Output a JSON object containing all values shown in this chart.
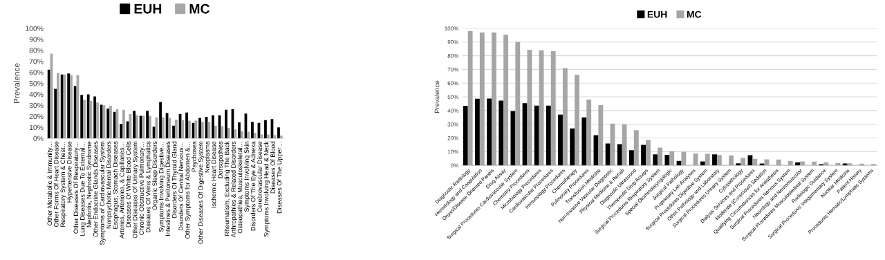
{
  "chart_data": [
    {
      "type": "bar",
      "ylabel": "Prevalence",
      "legend": "top",
      "grid": false,
      "categories": [
        "Other Metabolic & Immunity…",
        "Other Forms Of Heart Disease",
        "Respiratory System & Chest…",
        "Hypertensive Disease",
        "Other Diseases Of Respiratory…",
        "Lung Diseases Due To External…",
        "Nephritis, Nephrotic Syndrome",
        "Other Endocrine Glands Diseases",
        "Symptoms of Cardiovascular System",
        "Nonpsychotic Mental Disorders",
        "Esophagus, Stomach Diseases",
        "Arteries, Arterioles, & Capillaries…",
        "Diseases Of White Blood Cells",
        "Other Diseases Of Urinary System",
        "Chronic Obstructive Pulmonary…",
        "Diseases Of Veins & Lymphatics",
        "Organic Sleep Disorders",
        "Symptoms Involving Digestive…",
        "Intestines & Peritoneum Diseases",
        "Disorders Of Thyroid Gland",
        "Disorders Of Central Nervous…",
        "Other Symptoms for Abdomen &…",
        "Psychoses",
        "Other Diseases Of Digestive System",
        "Neoplasms",
        "Ischemic Heart Disease",
        "Dorsopathies",
        "Rheumatism, Excluding The Back",
        "Arthropathies & Related Disorders",
        "Osteopathies, Musculoskeletal…",
        "Symptoms Involving Skin",
        "Disorders Of The Eye & Adnexa",
        "Cerebrovascular Disease",
        "Symptoms Involving Head & Neck",
        "Diseases Of Blood",
        "Diseases Of The Upper…"
      ],
      "series": [
        {
          "name": "EUH",
          "color": "#000000",
          "values": [
            62.5,
            45,
            58,
            59,
            47.5,
            39.5,
            40,
            38,
            30.5,
            27,
            24,
            13,
            15.5,
            25,
            20.5,
            25,
            10.5,
            33,
            23,
            11.5,
            22,
            23.5,
            14,
            18.5,
            19.5,
            21,
            21,
            26,
            26.5,
            14.5,
            22.5,
            15,
            14,
            16.5,
            17.5,
            10
          ]
        },
        {
          "name": "MC",
          "color": "#a6a6a6",
          "values": [
            77,
            59.5,
            58,
            57.5,
            57.5,
            35,
            34,
            32.5,
            30,
            29.5,
            26.5,
            26,
            22,
            21,
            20.5,
            20.5,
            19,
            19,
            18.5,
            17,
            16.5,
            16,
            16,
            15,
            15,
            11.5,
            11,
            9.5,
            8,
            6.5,
            6,
            5,
            3.5,
            3.5,
            3,
            2.5
          ]
        }
      ],
      "ylim": [
        0,
        100
      ],
      "yticks": [
        {
          "value": 0,
          "label": "0%"
        },
        {
          "value": 10,
          "label": "10%"
        },
        {
          "value": 20,
          "label": "20%"
        },
        {
          "value": 30,
          "label": "30%"
        },
        {
          "value": 40,
          "label": "40%"
        },
        {
          "value": 50,
          "label": "50%"
        },
        {
          "value": 60,
          "label": "60%"
        },
        {
          "value": 70,
          "label": "70%"
        },
        {
          "value": 80,
          "label": "80%"
        },
        {
          "value": 90,
          "label": "90%"
        },
        {
          "value": 100,
          "label": "100%"
        }
      ]
    },
    {
      "type": "bar",
      "ylabel": "Prevalence",
      "legend": "top",
      "grid": "y",
      "categories": [
        "Diagnostic Radiology",
        "Hematology and Coagulation",
        "Organ/Disease Oriented Panels",
        "Drug Assay",
        "Surgical Procedures Cardiovascular System",
        "Chemistry Procedures",
        "Microbiology Procedures",
        "Cardiovascular Procedures",
        "Immunology Procedures",
        "Chemotherapy",
        "Pulmonary Procedures",
        "Transfusion Medicine",
        "Non-Invasive Vascular Diagnostic",
        "Physical Medicine & Rehab",
        "Diagnostic Ultrasound",
        "Therapeutic Drug Assays",
        "Surgical Procedures Respiratory System",
        "Special Otorhinolaryngologic",
        "Surgical Pathology",
        "Proprietary Lab Analyses",
        "Surgical Procedures Digestive System",
        "Other Pathology and Laboratory",
        "Surgical Procedures Urinary System",
        "Cytopathology",
        "Dialysis Services and Procedures",
        "Moderate (Conscious) Sedation",
        "Qualifying Circumstances for Anesthesia",
        "Surgical Procedures Nervous System",
        "Neurology and Neuromuscular",
        "Surgical Procedures Musculoskeletal System",
        "Radiologic Guidance",
        "Surgical Procedures Integumentary System",
        "Nuclear Medicine",
        "Patient History",
        "Procedures Hematic/Lymphatic Systems"
      ],
      "series": [
        {
          "name": "EUH",
          "color": "#000000",
          "values": [
            43.5,
            48.7,
            48.8,
            47.3,
            39.5,
            45.3,
            43.6,
            43.6,
            37,
            27,
            35,
            22,
            16,
            15.5,
            11,
            15,
            8,
            7.7,
            3.2,
            0,
            2.8,
            8,
            0,
            1.5,
            7.4,
            1.3,
            0,
            0,
            2.2,
            0,
            0.8,
            0,
            1.3,
            0,
            0
          ]
        },
        {
          "name": "MC",
          "color": "#a6a6a6",
          "values": [
            98,
            97,
            97,
            95.3,
            90,
            84.3,
            84,
            83.4,
            71,
            66,
            48,
            44,
            30.5,
            30,
            25.7,
            18.5,
            13,
            10.4,
            9.9,
            8.7,
            8.4,
            7.5,
            7.2,
            5.5,
            4.7,
            4.3,
            4.2,
            3.2,
            2.8,
            2.7,
            2.2,
            1.7,
            1.5,
            1.2,
            1.0
          ]
        }
      ],
      "ylim": [
        0,
        100
      ],
      "yticks": [
        {
          "value": 0,
          "label": "0%"
        },
        {
          "value": 10,
          "label": "10%"
        },
        {
          "value": 20,
          "label": "20%"
        },
        {
          "value": 30,
          "label": "30%"
        },
        {
          "value": 40,
          "label": "40%"
        },
        {
          "value": 50,
          "label": "50%"
        },
        {
          "value": 60,
          "label": "60%"
        },
        {
          "value": 70,
          "label": "70%"
        },
        {
          "value": 80,
          "label": "80%"
        },
        {
          "value": 90,
          "label": "90%"
        },
        {
          "value": 100,
          "label": "100%"
        }
      ]
    }
  ]
}
